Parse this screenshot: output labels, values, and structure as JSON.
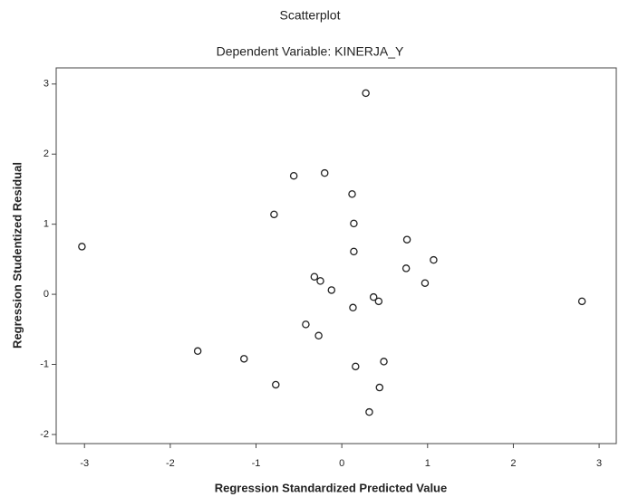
{
  "chart_data": {
    "type": "scatter",
    "title": "Scatterplot",
    "subtitle": "Dependent Variable: KINERJA_Y",
    "x_label": "Regression Standardized Predicted Value",
    "y_label": "Regression Studentized Residual",
    "x": [
      -3.03,
      0.28,
      -0.56,
      -0.2,
      -0.79,
      0.12,
      0.14,
      0.14,
      0.76,
      1.07,
      0.75,
      0.97,
      -0.32,
      -0.25,
      -0.12,
      0.37,
      0.43,
      0.13,
      2.8,
      -0.42,
      -0.27,
      -1.68,
      -1.14,
      -0.77,
      0.16,
      0.49,
      0.44,
      0.32
    ],
    "values": [
      0.68,
      2.87,
      1.69,
      1.73,
      1.14,
      1.43,
      1.01,
      0.61,
      0.78,
      0.49,
      0.37,
      0.16,
      0.25,
      0.19,
      0.06,
      -0.04,
      -0.1,
      -0.19,
      -0.1,
      -0.43,
      -0.59,
      -0.81,
      -0.92,
      -1.29,
      -1.03,
      -0.96,
      -1.33,
      -1.68
    ],
    "color": "#222222",
    "xlim": [
      -3.33,
      3.2
    ],
    "ylim": [
      -2.13,
      3.23
    ],
    "xticks": [
      -3,
      -2,
      -1,
      0,
      1,
      2,
      3
    ],
    "yticks": [
      -2,
      -1,
      0,
      1,
      2,
      3
    ],
    "grid": false
  }
}
